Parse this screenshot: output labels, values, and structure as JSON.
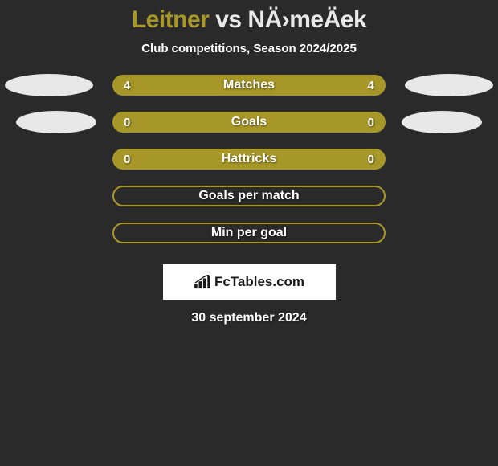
{
  "header": {
    "player1": "Leitner",
    "vs": " vs ",
    "player2": "NÄ›meÄek",
    "player1_color": "#a79728",
    "player2_color": "#e8e8e8",
    "subtitle": "Club competitions, Season 2024/2025"
  },
  "stats": [
    {
      "label": "Matches",
      "left_val": "4",
      "right_val": "4",
      "bar_color": "#a79728",
      "has_ellipses": true,
      "ellipse_left_color": "#e8e8e8",
      "ellipse_right_color": "#e8e8e8",
      "ellipse_size": "large"
    },
    {
      "label": "Goals",
      "left_val": "0",
      "right_val": "0",
      "bar_color": "#a79728",
      "has_ellipses": true,
      "ellipse_left_color": "#e8e8e8",
      "ellipse_right_color": "#e8e8e8",
      "ellipse_size": "small"
    },
    {
      "label": "Hattricks",
      "left_val": "0",
      "right_val": "0",
      "bar_color": "#a79728",
      "has_ellipses": false
    },
    {
      "label": "Goals per match",
      "outline": true,
      "border_color": "#a79728"
    },
    {
      "label": "Min per goal",
      "outline": true,
      "border_color": "#a79728"
    }
  ],
  "footer": {
    "brand": "FcTables.com",
    "date": "30 september 2024"
  },
  "style": {
    "background": "#2a2a2a",
    "text_color": "#ffffff"
  }
}
